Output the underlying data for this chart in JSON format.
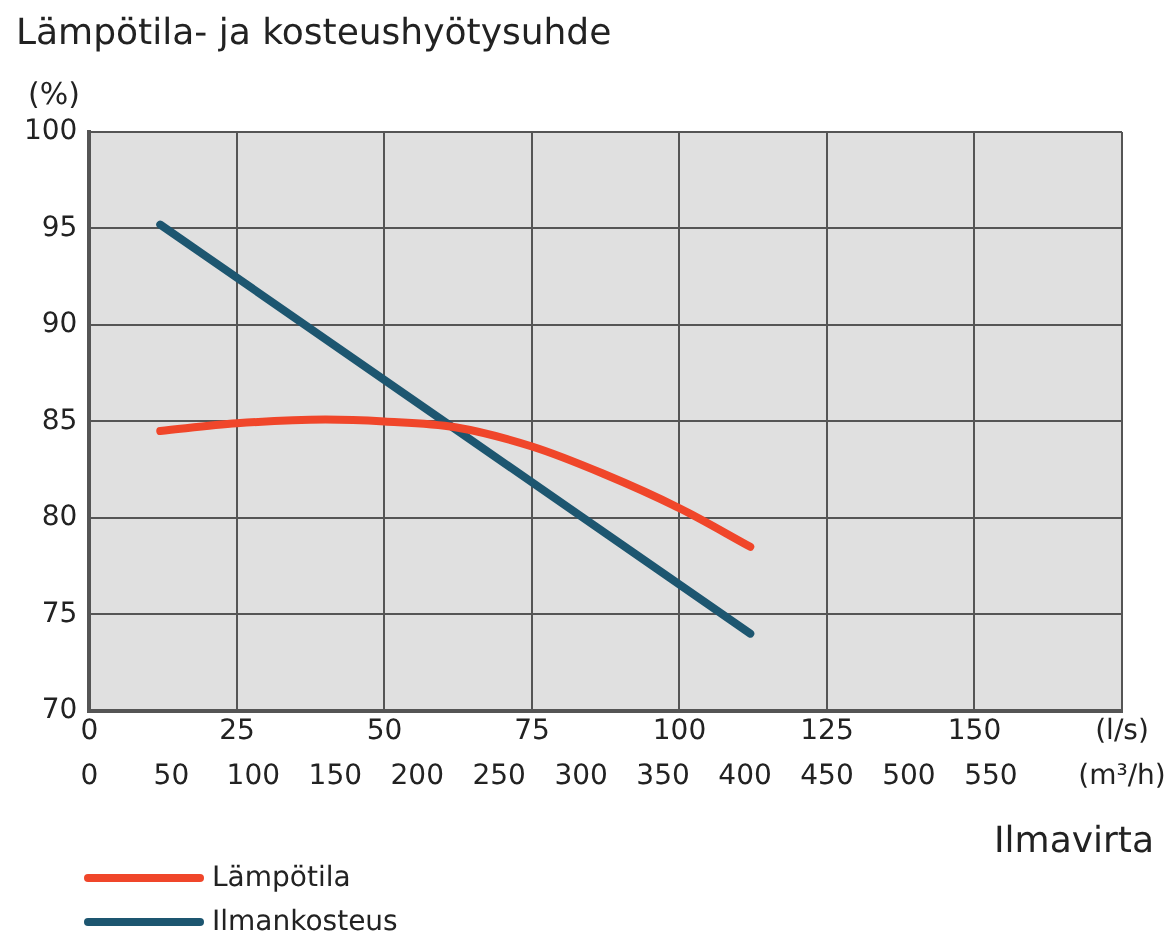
{
  "chart_data": {
    "type": "line",
    "title": "Lämpötila- ja kosteushyötysuhde",
    "ylabel": "(%)",
    "xlabel": "Ilmavirta",
    "xlim": [
      0,
      175
    ],
    "xticks": [
      0,
      25,
      50,
      75,
      100,
      125,
      150,
      {
        "value": 175,
        "label": "(l/s)"
      }
    ],
    "x2lim": [
      0,
      630
    ],
    "x2ticks": [
      0,
      50,
      100,
      150,
      200,
      250,
      300,
      350,
      400,
      450,
      500,
      550,
      {
        "value": 630,
        "label": "(m³/h)"
      }
    ],
    "ylim": [
      70,
      100
    ],
    "yticks": [
      70,
      75,
      80,
      85,
      90,
      95,
      100
    ],
    "grid": true,
    "legend": "bottom left",
    "marker": "none",
    "line_style": "solid",
    "series": [
      {
        "name": "Lämpötila",
        "color": "#f0462a",
        "x": [
          12,
          25,
          40,
          50,
          62,
          75,
          87,
          100,
          112
        ],
        "values": [
          84.5,
          84.9,
          85.1,
          85.0,
          84.7,
          83.7,
          82.3,
          80.5,
          78.5
        ]
      },
      {
        "name": "Ilmankosteus",
        "color": "#1d5670",
        "x": [
          12,
          112
        ],
        "values": [
          95.2,
          74.0
        ]
      }
    ]
  }
}
